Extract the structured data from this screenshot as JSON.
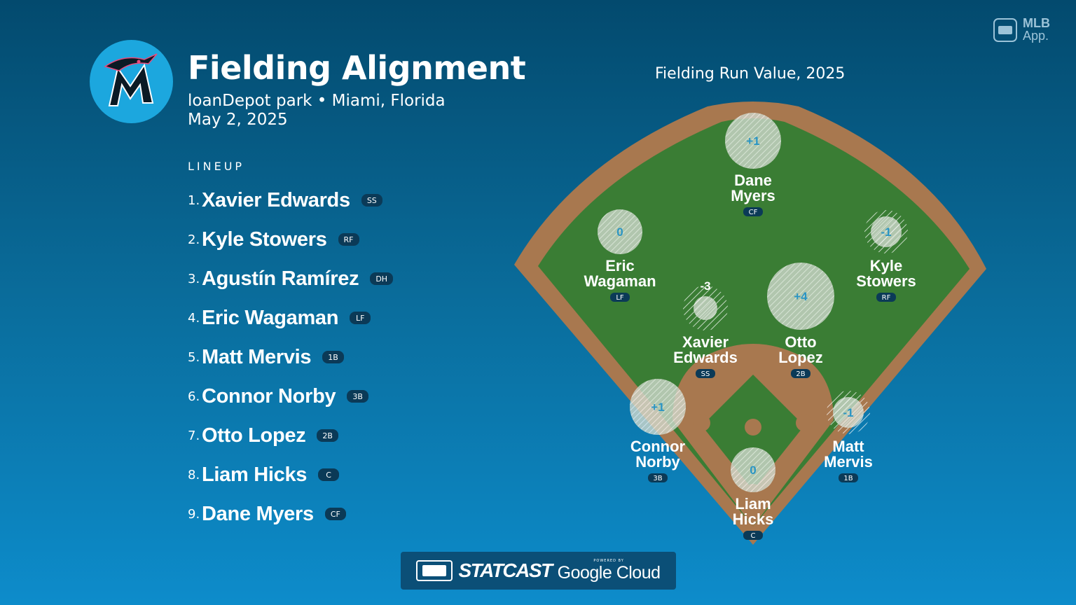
{
  "header": {
    "title": "Fielding Alignment",
    "venue": "loanDepot park • Miami, Florida",
    "date": "May 2, 2025"
  },
  "lineup": {
    "heading": "LINEUP",
    "players": [
      {
        "num": "1.",
        "name": "Xavier Edwards",
        "pos": "SS"
      },
      {
        "num": "2.",
        "name": "Kyle Stowers",
        "pos": "RF"
      },
      {
        "num": "3.",
        "name": "Agustín Ramírez",
        "pos": "DH"
      },
      {
        "num": "4.",
        "name": "Eric Wagaman",
        "pos": "LF"
      },
      {
        "num": "5.",
        "name": "Matt Mervis",
        "pos": "1B"
      },
      {
        "num": "6.",
        "name": "Connor Norby",
        "pos": "3B"
      },
      {
        "num": "7.",
        "name": "Otto Lopez",
        "pos": "2B"
      },
      {
        "num": "8.",
        "name": "Liam Hicks",
        "pos": "C"
      },
      {
        "num": "9.",
        "name": "Dane Myers",
        "pos": "CF"
      }
    ]
  },
  "field": {
    "label": "Fielding Run Value, 2025",
    "fielders": [
      {
        "first": "Dane",
        "last": "Myers",
        "pos": "CF",
        "value": "+1"
      },
      {
        "first": "Eric",
        "last": "Wagaman",
        "pos": "LF",
        "value": "0"
      },
      {
        "first": "Kyle",
        "last": "Stowers",
        "pos": "RF",
        "value": "-1"
      },
      {
        "first": "Xavier",
        "last": "Edwards",
        "pos": "SS",
        "value": "-3"
      },
      {
        "first": "Otto",
        "last": "Lopez",
        "pos": "2B",
        "value": "+4"
      },
      {
        "first": "Connor",
        "last": "Norby",
        "pos": "3B",
        "value": "+1"
      },
      {
        "first": "Matt",
        "last": "Mervis",
        "pos": "1B",
        "value": "-1"
      },
      {
        "first": "Liam",
        "last": "Hicks",
        "pos": "C",
        "value": "0"
      }
    ]
  },
  "brand": {
    "mlb_line1": "MLB",
    "mlb_line2": "App.",
    "statcast": "STATCAST",
    "powered_by": "POWERED BY",
    "google_cloud": "Google Cloud"
  },
  "colors": {
    "grass": "#3a7d34",
    "dirt": "#a8784f",
    "team_circle": "#1ca7de",
    "badge": "#0b3a57"
  }
}
